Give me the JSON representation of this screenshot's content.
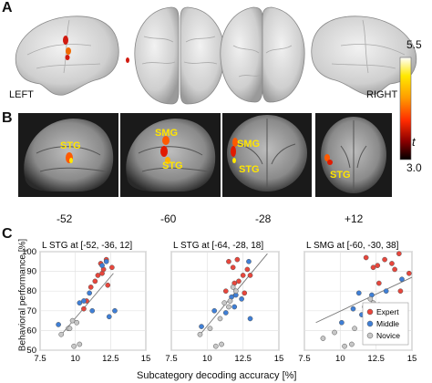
{
  "panels": {
    "a": "A",
    "b": "B",
    "c": "C"
  },
  "panel_a": {
    "left_label": "LEFT",
    "right_label": "RIGHT"
  },
  "colorbar": {
    "max": "5.5",
    "min": "3.0",
    "label": "t",
    "colors": [
      "#ffffff",
      "#ffe800",
      "#ff9a00",
      "#ff2b00",
      "#8b0000",
      "#000000"
    ]
  },
  "panel_b": {
    "coords": [
      "-52",
      "-60",
      "-28",
      "+12"
    ],
    "labels": {
      "slice1": [
        "STG"
      ],
      "slice2": [
        "SMG",
        "STG"
      ],
      "slice3": [
        "SMG",
        "STG"
      ],
      "slice4": [
        "STG"
      ]
    },
    "label_color": "#ffe500"
  },
  "panel_c": {
    "ylabel": "Behavioral performance [%]",
    "xlabel": "Subcategory decoding accuracy [%]",
    "legend": [
      "Expert",
      "Middle",
      "Novice"
    ],
    "legend_colors": {
      "Expert": "#e8463c",
      "Middle": "#3f7fd6",
      "Novice": "#c7c7c7"
    }
  },
  "chart_data": [
    {
      "type": "scatter",
      "title": "L STG at [-52, -36, 12]",
      "xlim": [
        7.5,
        15
      ],
      "ylim": [
        50,
        100
      ],
      "xticks": [
        "7.5",
        "10",
        "12.5",
        "15"
      ],
      "yticks": [
        "50",
        "60",
        "70",
        "80",
        "90",
        "100"
      ],
      "grid": true,
      "fit": [
        [
          8.9,
          57
        ],
        [
          12.7,
          89
        ]
      ],
      "series": [
        {
          "name": "Expert",
          "points": [
            [
              10.8,
              75
            ],
            [
              11.4,
              85
            ],
            [
              11.6,
              88
            ],
            [
              11.8,
              94
            ],
            [
              11.9,
              89
            ],
            [
              12.2,
              96
            ],
            [
              12.6,
              92
            ],
            [
              12.3,
              83
            ],
            [
              10.6,
              71
            ],
            [
              11.1,
              82
            ],
            [
              12.0,
              91
            ]
          ]
        },
        {
          "name": "Middle",
          "points": [
            [
              8.8,
              63
            ],
            [
              10.3,
              74
            ],
            [
              10.6,
              75
            ],
            [
              11.0,
              79
            ],
            [
              11.2,
              70
            ],
            [
              12.4,
              67
            ],
            [
              12.8,
              70
            ],
            [
              12.2,
              95
            ],
            [
              11.9,
              93
            ]
          ]
        },
        {
          "name": "Novice",
          "points": [
            [
              9.0,
              58
            ],
            [
              9.5,
              61
            ],
            [
              9.9,
              52
            ],
            [
              10.3,
              53
            ],
            [
              9.8,
              65
            ],
            [
              9.6,
              61
            ],
            [
              10.1,
              64
            ]
          ]
        }
      ]
    },
    {
      "type": "scatter",
      "title": "L STG at [-64, -28, 18]",
      "xlim": [
        7.5,
        15
      ],
      "ylim": [
        50,
        100
      ],
      "xticks": [
        "7.5",
        "10",
        "12.5",
        "15"
      ],
      "yticks": [
        "50",
        "60",
        "70",
        "80",
        "90",
        "100"
      ],
      "grid": true,
      "fit": [
        [
          9.4,
          57
        ],
        [
          14.2,
          99
        ]
      ],
      "series": [
        {
          "name": "Expert",
          "points": [
            [
              11.5,
              95
            ],
            [
              11.8,
              92
            ],
            [
              12.1,
              96
            ],
            [
              12.5,
              88
            ],
            [
              12.8,
              91
            ],
            [
              11.9,
              84
            ],
            [
              12.6,
              79
            ],
            [
              12.2,
              85
            ],
            [
              13.0,
              88
            ],
            [
              11.3,
              80
            ]
          ]
        },
        {
          "name": "Middle",
          "points": [
            [
              9.6,
              62
            ],
            [
              10.5,
              70
            ],
            [
              11.3,
              69
            ],
            [
              11.7,
              77
            ],
            [
              12.0,
              78
            ],
            [
              13.0,
              66
            ],
            [
              12.4,
              76
            ],
            [
              12.9,
              95
            ],
            [
              11.9,
              72
            ]
          ]
        },
        {
          "name": "Novice",
          "points": [
            [
              9.5,
              58
            ],
            [
              10.2,
              61
            ],
            [
              10.6,
              52
            ],
            [
              11.0,
              53
            ],
            [
              10.9,
              66
            ],
            [
              11.5,
              72
            ],
            [
              11.2,
              74
            ],
            [
              11.6,
              75
            ],
            [
              12.0,
              80
            ],
            [
              11.8,
              82
            ]
          ]
        }
      ]
    },
    {
      "type": "scatter",
      "title": "L SMG at [-60, -30, 38]",
      "xlim": [
        7.5,
        15
      ],
      "ylim": [
        50,
        100
      ],
      "xticks": [
        "7.5",
        "10",
        "12.5",
        "15"
      ],
      "yticks": [
        "50",
        "60",
        "70",
        "80",
        "90",
        "100"
      ],
      "grid": true,
      "fit": [
        [
          8.3,
          64
        ],
        [
          15.0,
          87
        ]
      ],
      "series": [
        {
          "name": "Expert",
          "points": [
            [
              11.8,
              97
            ],
            [
              12.6,
              93
            ],
            [
              13.1,
              96
            ],
            [
              13.6,
              94
            ],
            [
              14.1,
              99
            ],
            [
              14.8,
              89
            ],
            [
              12.7,
              84
            ],
            [
              14.2,
              80
            ],
            [
              13.8,
              91
            ],
            [
              12.3,
              92
            ]
          ]
        },
        {
          "name": "Middle",
          "points": [
            [
              10.1,
              64
            ],
            [
              10.9,
              71
            ],
            [
              11.5,
              68
            ],
            [
              12.2,
              78
            ],
            [
              12.7,
              73
            ],
            [
              13.2,
              80
            ],
            [
              14.3,
              86
            ],
            [
              11.3,
              79
            ]
          ]
        },
        {
          "name": "Novice",
          "points": [
            [
              8.8,
              56
            ],
            [
              9.6,
              59
            ],
            [
              10.3,
              52
            ],
            [
              10.8,
              53
            ],
            [
              11.0,
              61
            ],
            [
              12.1,
              76
            ],
            [
              11.7,
              72
            ],
            [
              12.3,
              74
            ]
          ]
        }
      ]
    }
  ]
}
